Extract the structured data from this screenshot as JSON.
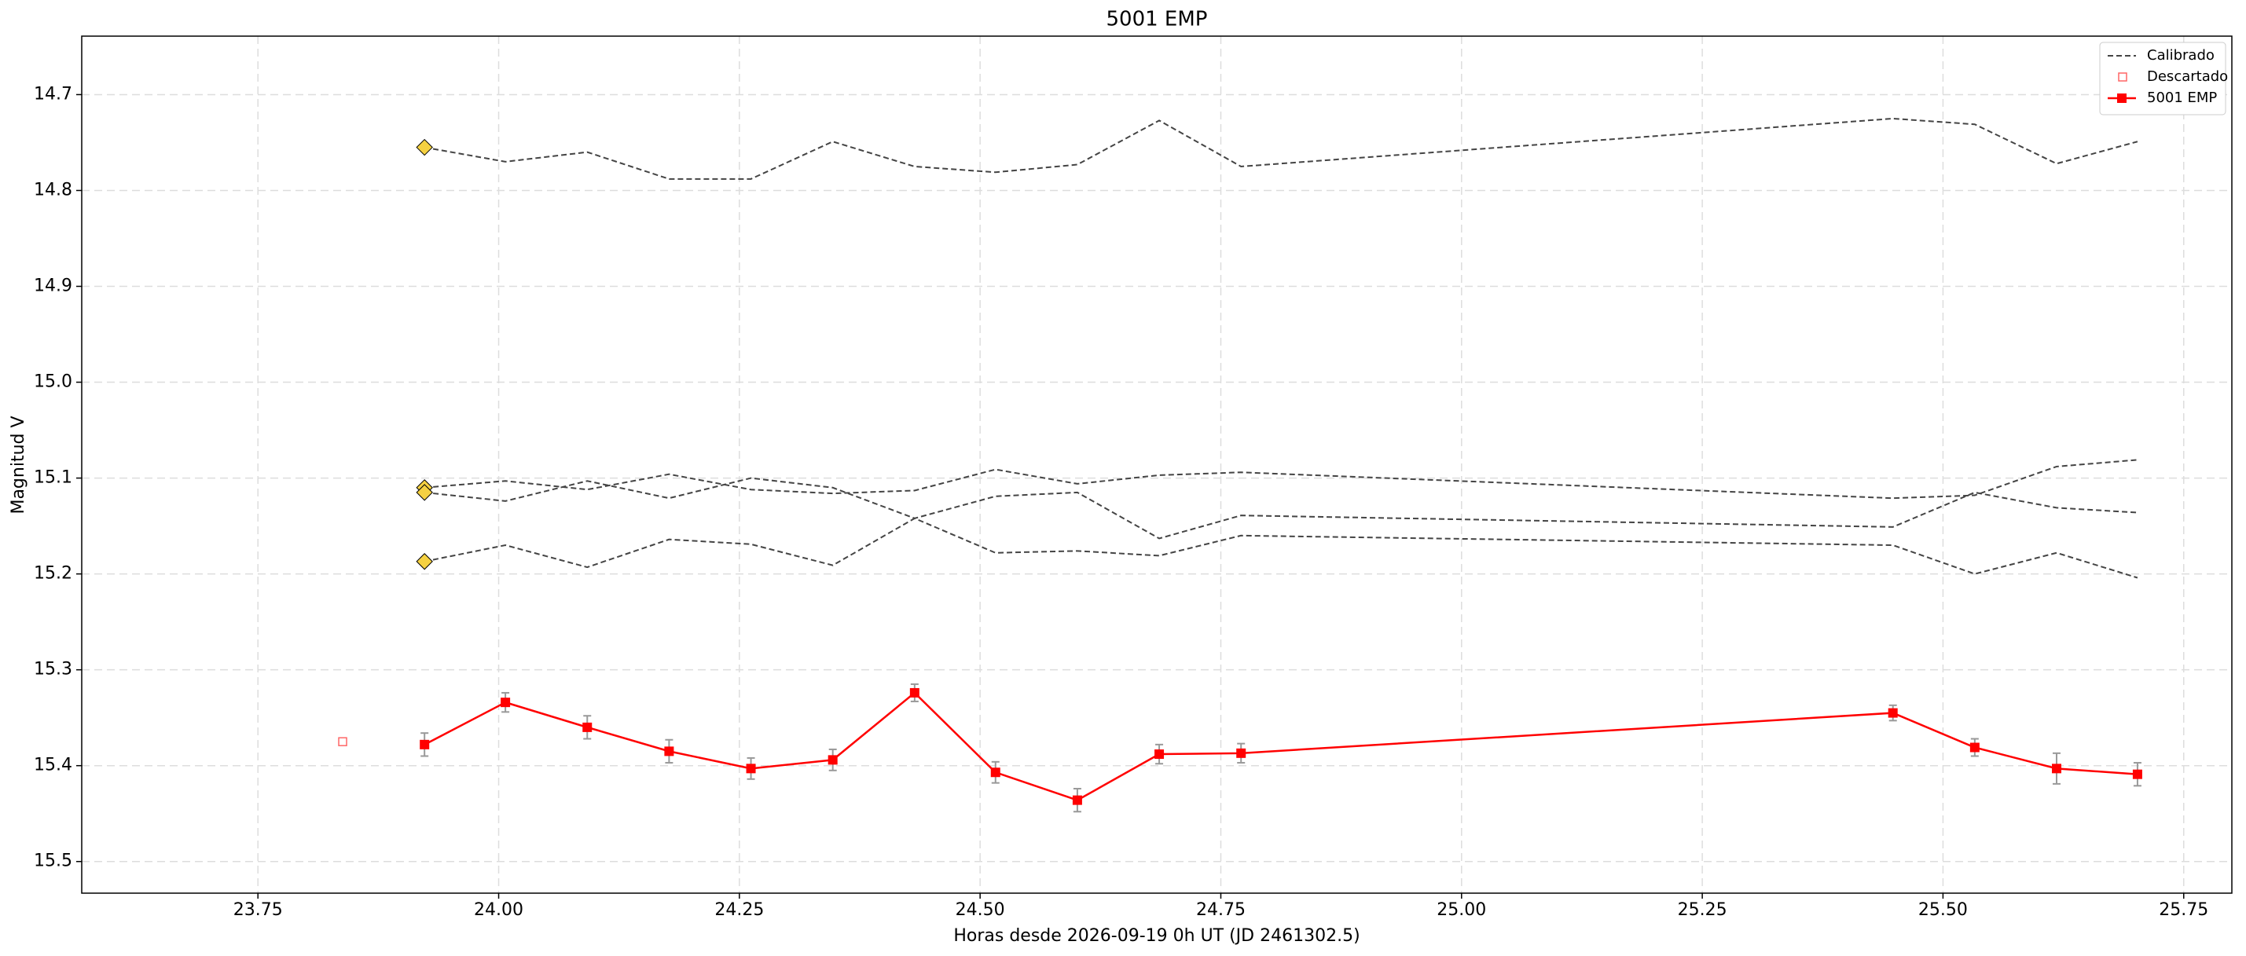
{
  "chart_data": {
    "type": "line",
    "title": "5001 EMP",
    "x_label": "Horas desde 2026-09-19 0h UT (JD 2461302.5)",
    "y_label": "Magnitud V",
    "x": [
      23.923,
      24.007,
      24.092,
      24.177,
      24.262,
      24.347,
      24.432,
      24.516,
      24.601,
      24.686,
      24.771,
      25.448,
      25.533,
      25.618,
      25.702
    ],
    "xlim": [
      23.567,
      25.8
    ],
    "xticks": [
      {
        "value": 23.75,
        "label": "23.75"
      },
      {
        "value": 24,
        "label": "24.00"
      },
      {
        "value": 24.25,
        "label": "24.25"
      },
      {
        "value": 24.5,
        "label": "24.50"
      },
      {
        "value": 24.75,
        "label": "24.75"
      },
      {
        "value": 25,
        "label": "25.00"
      },
      {
        "value": 25.25,
        "label": "25.25"
      },
      {
        "value": 25.5,
        "label": "25.50"
      },
      {
        "value": 25.75,
        "label": "25.75"
      }
    ],
    "ylim": [
      14.639,
      15.533
    ],
    "invert_y": true,
    "yticks": [
      14.7,
      14.8,
      14.9,
      {
        "value": 15,
        "label": "15.0"
      },
      15.1,
      15.2,
      15.3,
      15.4,
      15.5
    ],
    "grid": true,
    "legend": "upper right",
    "series": [
      {
        "name": "Calibrado",
        "color": "#444444",
        "marker_color": "#f5d142",
        "lines": [
          [
            14.755,
            14.77,
            14.76,
            14.788,
            14.788,
            14.749,
            14.775,
            14.781,
            14.773,
            14.727,
            14.775,
            14.725,
            14.731,
            14.772,
            14.749
          ],
          [
            15.11,
            15.103,
            15.112,
            15.096,
            15.112,
            15.116,
            15.113,
            15.091,
            15.106,
            15.097,
            15.094,
            15.121,
            15.118,
            15.088,
            15.081
          ],
          [
            15.115,
            15.124,
            15.103,
            15.121,
            15.1,
            15.11,
            15.142,
            15.119,
            15.115,
            15.163,
            15.139,
            15.151,
            15.115,
            15.131,
            15.136
          ],
          [
            15.187,
            15.17,
            15.193,
            15.164,
            15.169,
            15.191,
            15.142,
            15.178,
            15.176,
            15.181,
            15.16,
            15.17,
            15.2,
            15.178,
            15.204
          ]
        ]
      },
      {
        "name": "Descartado",
        "color": "#ff6666",
        "x": [
          23.838
        ],
        "values": [
          15.375
        ]
      },
      {
        "name": "5001 EMP",
        "color": "#ff0000",
        "values": [
          15.378,
          15.334,
          15.36,
          15.385,
          15.403,
          15.394,
          15.324,
          15.407,
          15.436,
          15.388,
          15.387,
          15.345,
          15.381,
          15.403,
          15.409
        ],
        "errors": [
          0.012,
          0.01,
          0.012,
          0.012,
          0.011,
          0.011,
          0.009,
          0.011,
          0.012,
          0.01,
          0.01,
          0.008,
          0.009,
          0.016,
          0.012
        ]
      }
    ]
  }
}
